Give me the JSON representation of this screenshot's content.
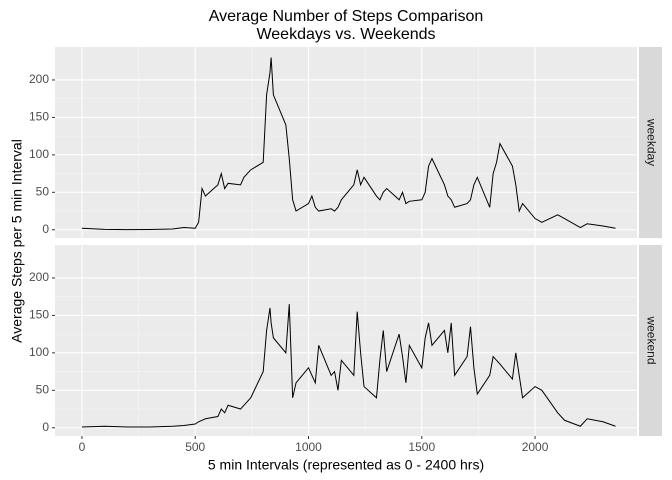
{
  "chart_data": {
    "type": "line",
    "title": "Average Number of Steps Comparison",
    "subtitle": "Weekdays vs. Weekends",
    "x_label": "5 min Intervals (represented as 0 - 2400 hrs)",
    "y_label": "Average Steps per 5 min Interval",
    "x": [
      0,
      100,
      200,
      300,
      400,
      450,
      500,
      515,
      530,
      545,
      600,
      615,
      630,
      645,
      700,
      715,
      730,
      745,
      800,
      815,
      830,
      835,
      845,
      900,
      915,
      930,
      945,
      1000,
      1015,
      1030,
      1045,
      1100,
      1115,
      1130,
      1145,
      1200,
      1215,
      1230,
      1245,
      1300,
      1315,
      1330,
      1345,
      1400,
      1415,
      1430,
      1445,
      1500,
      1515,
      1530,
      1545,
      1600,
      1615,
      1630,
      1645,
      1700,
      1715,
      1730,
      1745,
      1800,
      1815,
      1830,
      1845,
      1900,
      1915,
      1930,
      1945,
      2000,
      2030,
      2100,
      2130,
      2200,
      2230,
      2300,
      2355
    ],
    "series": [
      {
        "name": "weekday",
        "color": "#000000",
        "values": [
          2,
          0.5,
          0.2,
          0.3,
          1,
          3,
          2,
          10,
          55,
          45,
          60,
          75,
          55,
          62,
          60,
          70,
          75,
          80,
          90,
          180,
          210,
          230,
          180,
          140,
          95,
          40,
          25,
          35,
          45,
          30,
          25,
          28,
          25,
          30,
          40,
          60,
          80,
          60,
          70,
          45,
          40,
          50,
          55,
          40,
          50,
          35,
          38,
          40,
          50,
          85,
          95,
          60,
          45,
          40,
          30,
          35,
          40,
          60,
          70,
          30,
          75,
          90,
          115,
          85,
          60,
          25,
          35,
          15,
          10,
          20,
          15,
          3,
          8,
          5,
          2
        ]
      },
      {
        "name": "weekend",
        "color": "#000000",
        "values": [
          1,
          2,
          1,
          1,
          2,
          3,
          5,
          8,
          10,
          12,
          15,
          25,
          20,
          30,
          25,
          30,
          35,
          40,
          75,
          130,
          160,
          140,
          120,
          100,
          165,
          40,
          60,
          80,
          70,
          60,
          110,
          70,
          75,
          50,
          90,
          70,
          155,
          100,
          55,
          40,
          90,
          130,
          75,
          125,
          95,
          60,
          110,
          80,
          120,
          140,
          110,
          130,
          100,
          140,
          70,
          95,
          135,
          80,
          45,
          70,
          95,
          90,
          85,
          65,
          100,
          70,
          40,
          55,
          50,
          20,
          10,
          2,
          12,
          8,
          2
        ]
      }
    ],
    "xlim": [
      -119,
      2450
    ],
    "ylim": [
      -11,
      244
    ],
    "xticks": [
      0,
      500,
      1000,
      1500,
      2000
    ],
    "yticks": [
      0,
      50,
      100,
      150,
      200
    ],
    "grid": true
  }
}
